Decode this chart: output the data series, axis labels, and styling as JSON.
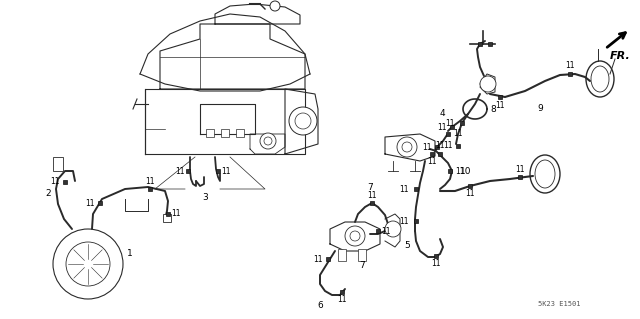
{
  "background_color": "#ffffff",
  "line_color": "#2a2a2a",
  "text_color": "#000000",
  "diagram_code": "5K23 E1501",
  "fig_width": 6.4,
  "fig_height": 3.19,
  "dpi": 100,
  "clamp_size": 0.008,
  "label_fontsize": 5.5,
  "part_fontsize": 6.5
}
